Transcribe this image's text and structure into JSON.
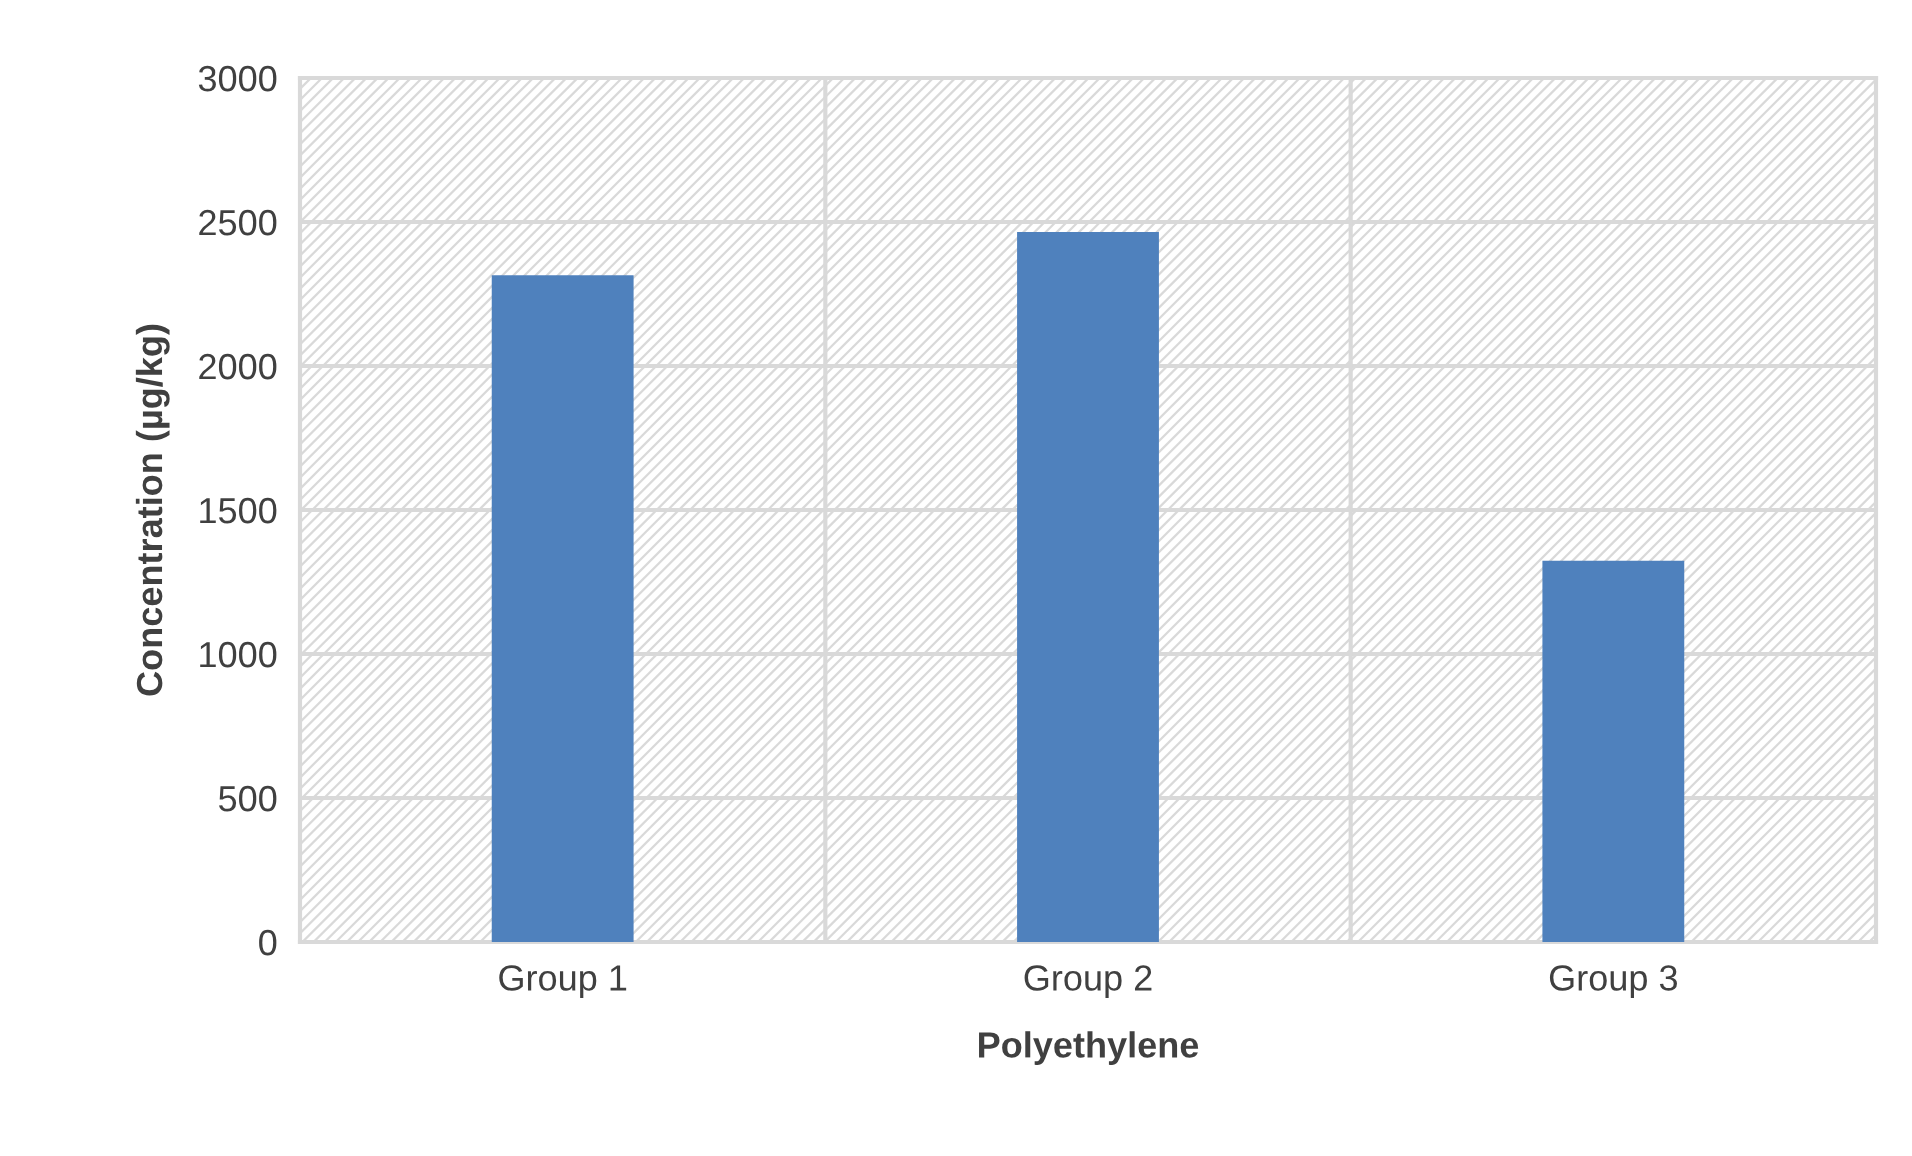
{
  "chart_data": {
    "type": "bar",
    "xlabel": "Polyethylene",
    "ylabel": "Concentration (µg/kg)",
    "categories": [
      "Group 1",
      "Group 2",
      "Group 3"
    ],
    "values": [
      2315,
      2465,
      1324
    ],
    "color": "#4f81bd",
    "ylim": [
      0,
      3000
    ],
    "yticks": [
      0,
      500,
      1000,
      1500,
      2000,
      2500,
      3000
    ],
    "grid": true
  }
}
